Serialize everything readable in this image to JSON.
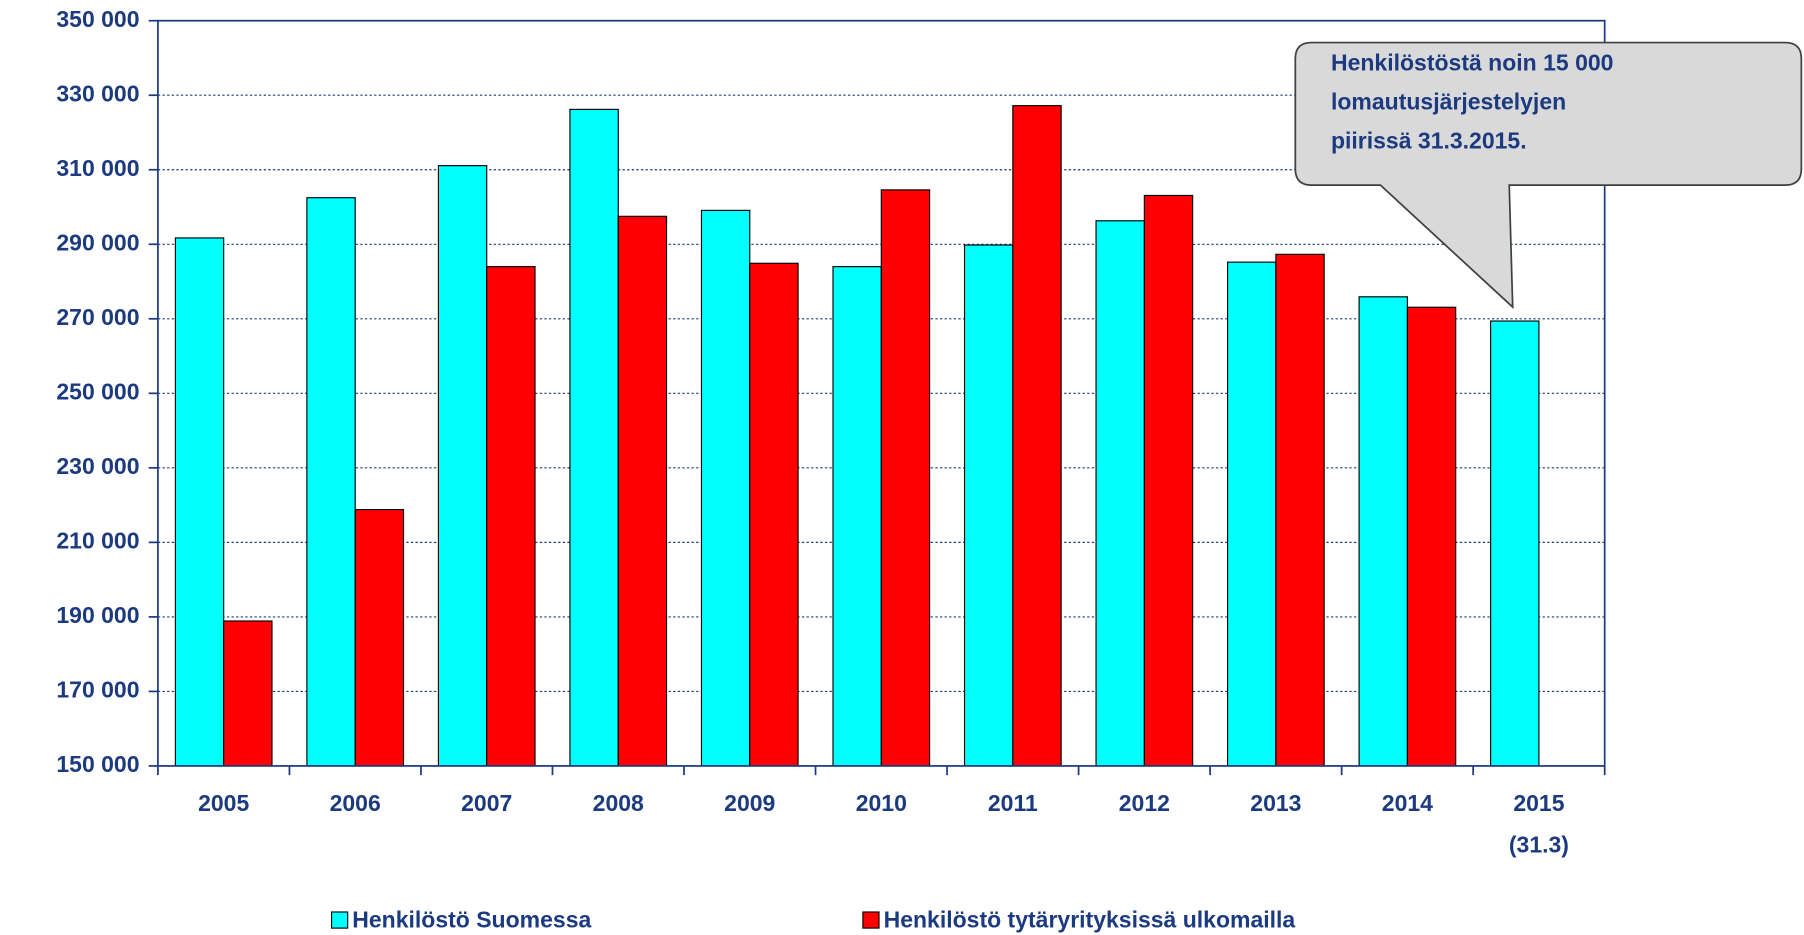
{
  "chart_data": {
    "type": "bar",
    "categories": [
      "2005",
      "2006",
      "2007",
      "2008",
      "2009",
      "2010",
      "2011",
      "2012",
      "2013",
      "2014",
      "2015\n(31.3)"
    ],
    "series": [
      {
        "name": "Henkilöstö Suomessa",
        "color": "#00ffff",
        "values": [
          291700,
          302500,
          311100,
          326200,
          299100,
          284000,
          289800,
          296300,
          285200,
          275900,
          269400
        ]
      },
      {
        "name": "Henkilöstö tytäryrityksissä ulkomailla",
        "color": "#ff0000",
        "values": [
          188900,
          218800,
          284000,
          297500,
          284900,
          304600,
          327200,
          303100,
          287300,
          273100,
          null
        ]
      }
    ],
    "ylim": [
      150000,
      350000
    ],
    "yticks": [
      {
        "value": 150000,
        "label": "150 000"
      },
      {
        "value": 170000,
        "label": "170 000"
      },
      {
        "value": 190000,
        "label": "190 000"
      },
      {
        "value": 210000,
        "label": "210 000"
      },
      {
        "value": 230000,
        "label": "230 000"
      },
      {
        "value": 250000,
        "label": "250 000"
      },
      {
        "value": 270000,
        "label": "270 000"
      },
      {
        "value": 290000,
        "label": "290 000"
      },
      {
        "value": 310000,
        "label": "310 000"
      },
      {
        "value": 330000,
        "label": "330 000"
      },
      {
        "value": 350000,
        "label": "350 000"
      }
    ],
    "grid": true,
    "legend": "bottom",
    "annotation": "Henkilöstöstä noin 15 000\nlomautusjärjestelyjen\npiirissä  31.3.2015."
  }
}
